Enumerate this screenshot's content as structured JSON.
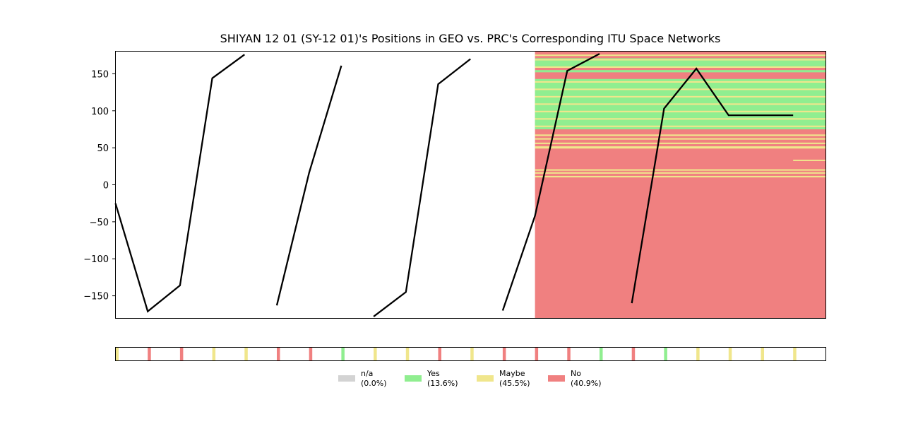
{
  "chart_data": {
    "type": "line",
    "title": "SHIYAN 12 01 (SY-12 01)'s Positions in GEO vs. PRC's Corresponding ITU Space Networks",
    "xlabel": "",
    "ylabel": "",
    "ylim": [
      -180,
      180
    ],
    "yticks": [
      150,
      100,
      50,
      0,
      -50,
      -100,
      -150
    ],
    "ytick_labels": [
      "150",
      "100",
      "50",
      "0",
      "−50",
      "−100",
      "−150"
    ],
    "grid": false,
    "series": [
      {
        "color": "#000000",
        "segments": [
          [
            [
              0,
              -25
            ],
            [
              1,
              -171
            ],
            [
              2,
              -136
            ],
            [
              3,
              144
            ],
            [
              4,
              176
            ]
          ],
          [
            [
              5,
              -163
            ],
            [
              6,
              16
            ],
            [
              7,
              161
            ]
          ],
          [
            [
              8,
              -178
            ],
            [
              9,
              -145
            ],
            [
              10,
              136
            ],
            [
              11,
              170
            ]
          ],
          [
            [
              12,
              -170
            ],
            [
              13,
              -42
            ],
            [
              14,
              154
            ],
            [
              15,
              177
            ]
          ],
          [
            [
              16,
              -160
            ],
            [
              17,
              103
            ],
            [
              18,
              157
            ],
            [
              19,
              94
            ],
            [
              20,
              94
            ],
            [
              21,
              94
            ]
          ]
        ]
      }
    ],
    "status_colors": {
      "na": "#d3d3d3",
      "yes": "#90ee90",
      "maybe": "#f0e68c",
      "no": "#f08080"
    },
    "background_region": {
      "x_start": 13,
      "base_status": "no",
      "yes_bands": [
        [
          75,
          143
        ],
        [
          114,
          116
        ],
        [
          152,
          155
        ],
        [
          160,
          171
        ]
      ],
      "maybe_bands": [
        [
          10,
          12
        ],
        [
          15,
          17
        ],
        [
          19,
          21
        ],
        [
          49,
          52
        ],
        [
          55,
          57
        ],
        [
          61,
          63
        ],
        [
          66,
          68
        ],
        [
          78,
          80
        ],
        [
          88,
          90
        ],
        [
          98,
          100
        ],
        [
          108,
          110
        ],
        [
          118,
          120
        ],
        [
          128,
          130
        ],
        [
          138,
          140
        ],
        [
          158,
          160
        ],
        [
          168,
          170
        ],
        [
          174,
          176
        ]
      ],
      "partial_maybe": [
        {
          "x_start": 21,
          "y": 33
        }
      ]
    },
    "status_strip": [
      "maybe",
      "no",
      "no",
      "maybe",
      "maybe",
      "no",
      "no",
      "yes",
      "maybe",
      "maybe",
      "no",
      "maybe",
      "no",
      "no",
      "no",
      "yes",
      "no",
      "yes",
      "maybe",
      "maybe",
      "maybe",
      "maybe"
    ],
    "legend_position": "bottom-center",
    "legend": [
      {
        "key": "na",
        "label": "n/a",
        "percent": "(0.0%)"
      },
      {
        "key": "yes",
        "label": "Yes",
        "percent": "(13.6%)"
      },
      {
        "key": "maybe",
        "label": "Maybe",
        "percent": "(45.5%)"
      },
      {
        "key": "no",
        "label": "No",
        "percent": "(40.9%)"
      }
    ]
  }
}
